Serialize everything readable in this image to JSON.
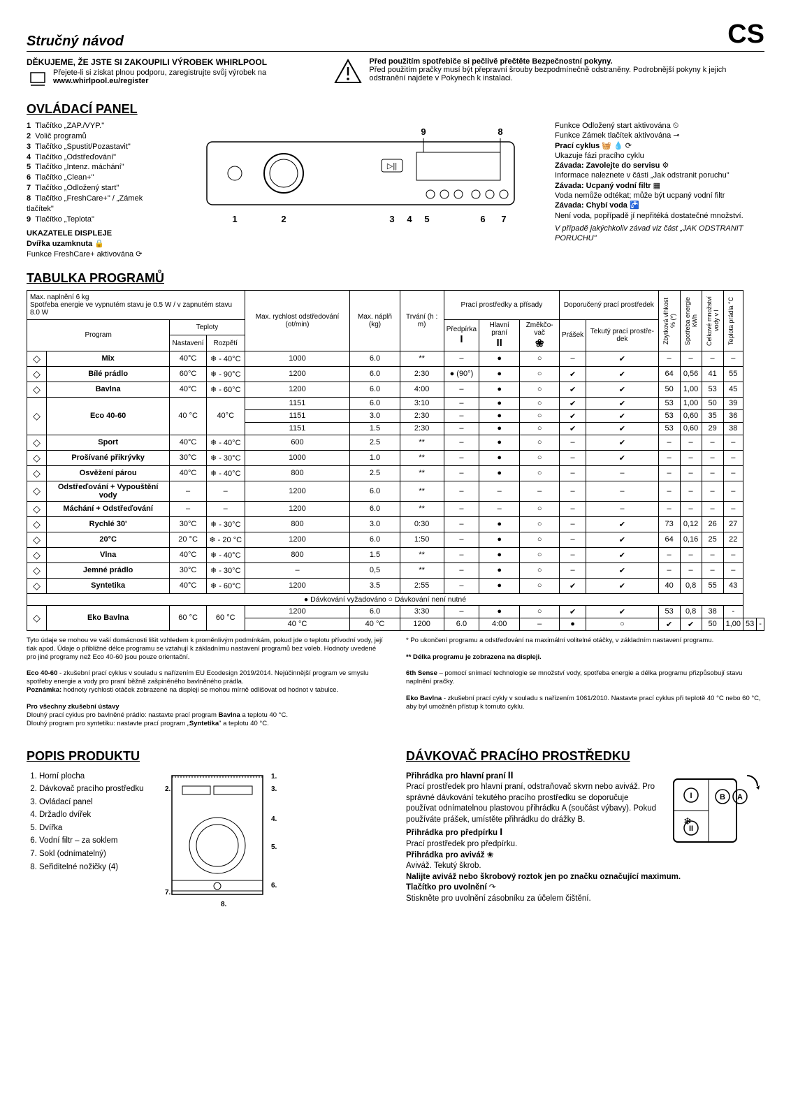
{
  "header": {
    "quick_guide": "Stručný návod",
    "lang": "CS"
  },
  "intro": {
    "thanks": "DĚKUJEME, ŽE JSTE SI ZAKOUPILI VÝROBEK WHIRLPOOL",
    "support": "Přejete-li si získat plnou podporu, zaregistrujte svůj výrobek na",
    "url": "www.whirlpool.eu/register",
    "warn_bold": "Před použitím spotřebiče si pečlivě přečtěte Bezpečnostní pokyny.",
    "warn_text": "Před použitím pračky musí být přepravní šrouby bezpodmínečně odstraněny. Podrobnější pokyny k jejich odstranění najdete v Pokynech k instalaci."
  },
  "control_panel": {
    "title": "OVLÁDACÍ PANEL",
    "items": [
      "Tlačítko „ZAP./VYP.\"",
      "Volič programů",
      "Tlačítko „Spustit/Pozastavit\"",
      "Tlačítko „Odstřeďování\"",
      "Tlačítko „Intenz. máchání\"",
      "Tlačítko „Clean+\"",
      "Tlačítko „Odložený start\"",
      "Tlačítko „FreshCare+\" / „Zámek tlačítek\"",
      "Tlačítko „Teplota\""
    ],
    "indicators_title": "UKAZATELE DISPLEJE",
    "door_locked": "Dvířka uzamknuta",
    "freshcare": "Funkce FreshCare+ aktivována",
    "right": {
      "delay": "Funkce Odložený start aktivována",
      "keylock": "Funkce Zámek tlačítek aktivována",
      "wash_cycle": "Prací cyklus",
      "wash_cycle_sub": "Ukazuje fázi pracího cyklu",
      "fault_service": "Závada: Zavolejte do servisu",
      "fault_service_sub": "Informace naleznete v části „Jak odstranit poruchu\"",
      "fault_filter": "Závada: Ucpaný vodní filtr",
      "fault_filter_sub": "Voda nemůže odtékat; může být ucpaný vodní filtr",
      "fault_water": "Závada: Chybí voda",
      "fault_water_sub": "Není voda, popřípadě jí nepřitéká dostatečné množství.",
      "any_fault": "V případě jakýchkoliv závad viz část „JAK ODSTRANIT PORUCHU\""
    }
  },
  "table": {
    "title": "TABULKA PROGRAMŮ",
    "load_line": "Max. naplnění 6 kg\nSpotřeba energie ve vypnutém stavu je 0.5 W / v zapnutém stavu 8.0 W",
    "col_groups": {
      "program": "Program",
      "temps": "Teploty",
      "spin": "Max. rychlost odstředo­vání (ot/min)",
      "load": "Max. náplň (kg)",
      "dur": "Trvání (h : m)",
      "add": "Prací prostředky a přísady",
      "det": "Doporučený pra­cí prostředek",
      "moist": "Zbytková vlhkost % (*)",
      "energy": "Spotřeba energie kWh",
      "water": "Celkové množství vody v l",
      "temp_res": "Teplota prádla °C"
    },
    "sub": {
      "set": "Nasta­vení",
      "range": "Rozpětí",
      "pre": "Předpírka",
      "main": "Hlavní praní",
      "soft": "Změkčo­vač",
      "powder": "Prášek",
      "liquid": "Tekutý prací prostře­dek"
    },
    "rows": [
      {
        "name": "Mix",
        "set": "40°C",
        "range": "❄ - 40°C",
        "spin": "1000",
        "load": "6.0",
        "dur": "**",
        "pre": "–",
        "main": "●",
        "soft": "○",
        "pow": "–",
        "liq": "✔",
        "m": "–",
        "e": "–",
        "w": "–",
        "t": "–"
      },
      {
        "name": "Bílé prádlo",
        "set": "60°C",
        "range": "❄ - 90°C",
        "spin": "1200",
        "load": "6.0",
        "dur": "2:30",
        "pre": "● (90°)",
        "main": "●",
        "soft": "○",
        "pow": "✔",
        "liq": "✔",
        "m": "64",
        "e": "0,56",
        "w": "41",
        "t": "55"
      },
      {
        "name": "Bavlna",
        "set": "40°C",
        "range": "❄ - 60°C",
        "spin": "1200",
        "load": "6.0",
        "dur": "4:00",
        "pre": "–",
        "main": "●",
        "soft": "○",
        "pow": "✔",
        "liq": "✔",
        "m": "50",
        "e": "1,00",
        "w": "53",
        "t": "45"
      },
      {
        "name": "Eco 40-60",
        "set": "40 °C",
        "range": "40°C",
        "spin": "1151",
        "load": "6.0",
        "dur": "3:10",
        "pre": "–",
        "main": "●",
        "soft": "○",
        "pow": "✔",
        "liq": "✔",
        "m": "53",
        "e": "1,00",
        "w": "50",
        "t": "39",
        "rowspan": 3
      },
      {
        "spin": "1151",
        "load": "3.0",
        "dur": "2:30",
        "pre": "–",
        "main": "●",
        "soft": "○",
        "pow": "✔",
        "liq": "✔",
        "m": "53",
        "e": "0,60",
        "w": "35",
        "t": "36"
      },
      {
        "spin": "1151",
        "load": "1.5",
        "dur": "2:30",
        "pre": "–",
        "main": "●",
        "soft": "○",
        "pow": "✔",
        "liq": "✔",
        "m": "53",
        "e": "0,60",
        "w": "29",
        "t": "38"
      },
      {
        "name": "Sport",
        "set": "40°C",
        "range": "❄ - 40°C",
        "spin": "600",
        "load": "2.5",
        "dur": "**",
        "pre": "–",
        "main": "●",
        "soft": "○",
        "pow": "–",
        "liq": "✔",
        "m": "–",
        "e": "–",
        "w": "–",
        "t": "–"
      },
      {
        "name": "Prošívané přikrývky",
        "set": "30°C",
        "range": "❄ - 30°C",
        "spin": "1000",
        "load": "1.0",
        "dur": "**",
        "pre": "–",
        "main": "●",
        "soft": "○",
        "pow": "–",
        "liq": "✔",
        "m": "–",
        "e": "–",
        "w": "–",
        "t": "–"
      },
      {
        "name": "Osvěžení párou",
        "set": "40°C",
        "range": "❄ - 40°C",
        "spin": "800",
        "load": "2.5",
        "dur": "**",
        "pre": "–",
        "main": "●",
        "soft": "○",
        "pow": "–",
        "liq": "–",
        "m": "–",
        "e": "–",
        "w": "–",
        "t": "–"
      },
      {
        "name": "Odstřeďování + Vypouštění vody",
        "set": "–",
        "range": "–",
        "spin": "1200",
        "load": "6.0",
        "dur": "**",
        "pre": "–",
        "main": "–",
        "soft": "–",
        "pow": "–",
        "liq": "–",
        "m": "–",
        "e": "–",
        "w": "–",
        "t": "–"
      },
      {
        "name": "Máchání + Odstřeďování",
        "set": "–",
        "range": "–",
        "spin": "1200",
        "load": "6.0",
        "dur": "**",
        "pre": "–",
        "main": "–",
        "soft": "○",
        "pow": "–",
        "liq": "–",
        "m": "–",
        "e": "–",
        "w": "–",
        "t": "–"
      },
      {
        "name": "Rychlé 30'",
        "set": "30°C",
        "range": "❄ - 30°C",
        "spin": "800",
        "load": "3.0",
        "dur": "0:30",
        "pre": "–",
        "main": "●",
        "soft": "○",
        "pow": "–",
        "liq": "✔",
        "m": "73",
        "e": "0,12",
        "w": "26",
        "t": "27"
      },
      {
        "name": "20°C",
        "set": "20 °C",
        "range": "❄ - 20 °C",
        "spin": "1200",
        "load": "6.0",
        "dur": "1:50",
        "pre": "–",
        "main": "●",
        "soft": "○",
        "pow": "–",
        "liq": "✔",
        "m": "64",
        "e": "0,16",
        "w": "25",
        "t": "22"
      },
      {
        "name": "Vlna",
        "set": "40°C",
        "range": "❄ - 40°C",
        "spin": "800",
        "load": "1.5",
        "dur": "**",
        "pre": "–",
        "main": "●",
        "soft": "○",
        "pow": "–",
        "liq": "✔",
        "m": "–",
        "e": "–",
        "w": "–",
        "t": "–"
      },
      {
        "name": "Jemné prádlo",
        "set": "30°C",
        "range": "❄ - 30°C",
        "spin": "–",
        "load": "0,5",
        "dur": "**",
        "pre": "–",
        "main": "●",
        "soft": "○",
        "pow": "–",
        "liq": "✔",
        "m": "–",
        "e": "–",
        "w": "–",
        "t": "–"
      },
      {
        "name": "Syntetika",
        "set": "40°C",
        "range": "❄ - 60°C",
        "spin": "1200",
        "load": "3.5",
        "dur": "2:55",
        "pre": "–",
        "main": "●",
        "soft": "○",
        "pow": "✔",
        "liq": "✔",
        "m": "40",
        "e": "0,8",
        "w": "55",
        "t": "43"
      }
    ],
    "dosing": "● Dávkování vyžadováno    ○ Dávkování není nutné",
    "eco_rows": [
      {
        "name": "Eko Bavlna",
        "set": "60 °C",
        "range": "60 °C",
        "spin": "1200",
        "load": "6.0",
        "dur": "3:30",
        "pre": "–",
        "main": "●",
        "soft": "○",
        "pow": "✔",
        "liq": "✔",
        "m": "53",
        "e": "0,8",
        "w": "38",
        "t": "-",
        "rowspan": 2
      },
      {
        "set": "40 °C",
        "range": "40 °C",
        "spin": "1200",
        "load": "6.0",
        "dur": "4:00",
        "pre": "–",
        "main": "●",
        "soft": "○",
        "pow": "✔",
        "liq": "✔",
        "m": "50",
        "e": "1,00",
        "w": "53",
        "t": "-"
      }
    ]
  },
  "footnotes": {
    "left": "Tyto údaje se mohou ve vaší domácnosti lišit vzhledem k proměnlivým podmínkám, pokud jde o teplotu přívodní vody, její tlak apod. Údaje o přibližné délce programu se vztahují k základnímu nastavení programů bez voleb. Hodnoty uvedené pro jiné programy než Eco 40-60 jsou pouze orientační.\n\nEco 40-60 - zkušební prací cyklus v souladu s nařízením EU Ecodesign 2019/2014. Nejúčinnější program ve smyslu spotřeby energie a vody pro praní běžně zašpiněného bavlněného prádla.\nPoznámka: hodnoty rychlosti otáček zobrazené na displeji se mohou mírně odlišovat od hodnot v tabulce.\n\nPro všechny zkušební ústavy\nDlouhý prací cyklus pro bavlněné prádlo: nastavte prací program Bavlna a teplotu 40 °C.\nDlouhý program pro syntetiku: nastavte prací program „Syntetika\" a teplotu 40 °C.",
    "right": "* Po ukončení programu a odstřeďování na maximální volitelné otáčky, v základním nastavení programu.\n\n** Délka programu je zobrazena na displeji.\n\n6th Sense – pomocí snímací technologie se množství vody, spotřeba energie a délka programu přizpůsobují stavu naplnění pračky.\n\nEko Bavlna - zkušební prací cykly v souladu s nařízením 1061/2010. Nastavte prací cyklus při teplotě 40 °C nebo 60 °C, aby byl umožněn přístup k tomuto cyklu."
  },
  "product": {
    "title": "POPIS PRODUKTU",
    "items": [
      "Horní plocha",
      "Dávkovač pracího prostředku",
      "Ovládací panel",
      "Držadlo dvířek",
      "Dvířka",
      "Vodní filtr – za soklem",
      "Sokl (odnímatelný)",
      "Seřiditelné nožičky (4)"
    ]
  },
  "dispenser": {
    "title": "DÁVKOVAČ PRACÍHO PROSTŘEDKU",
    "main_h": "Přihrádka pro hlavní praní",
    "main_t": "Prací prostředek pro hlavní praní, odstraňovač skvrn nebo aviváž. Pro správné dávkování tekutého pracího prostředku se doporučuje používat odnímatelnou plastovou přihrádku A (součást výbavy). Pokud používáte prášek, umístěte přihrádku do drážky B.",
    "pre_h": "Přihrádka pro předpírku",
    "pre_t": "Prací prostředek pro předpírku.",
    "soft_h": "Přihrádka pro aviváž",
    "soft_t": "Aviváž. Tekutý škrob.",
    "max": "Nalijte aviváž nebo škrobový roztok jen po značku označující maximum.",
    "rel_h": "Tlačítko pro uvolnění",
    "rel_t": "Stiskněte pro uvolnění zásobníku za účelem čištění."
  }
}
